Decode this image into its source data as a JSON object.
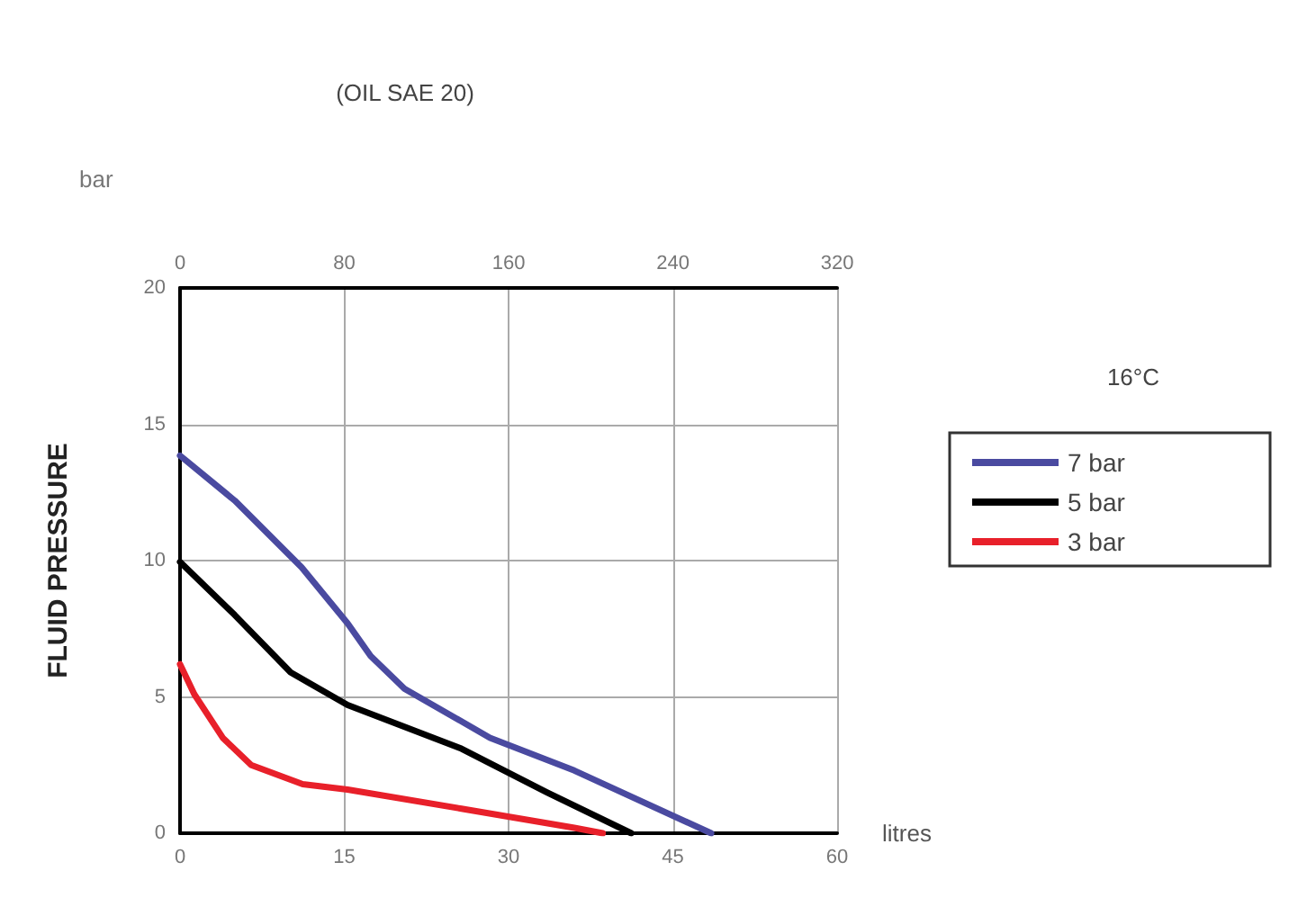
{
  "chart_data": {
    "type": "line",
    "title": "(OIL SAE 20)",
    "ylabel": "FLUID PRESSURE",
    "xlabel": "litres",
    "legend_title": "16°C",
    "annotations": [
      "bar"
    ],
    "xlim": [
      0,
      60
    ],
    "xticks": [
      0,
      15,
      30,
      45,
      60
    ],
    "x2lim": [
      0,
      320
    ],
    "x2ticks": [
      0,
      80,
      160,
      240,
      320
    ],
    "ylim": [
      0,
      20
    ],
    "yticks": [
      0,
      5,
      10,
      15,
      20
    ],
    "grid": true,
    "legend": "right",
    "marker": "none",
    "line_style": "solid",
    "series": [
      {
        "name": "7 bar",
        "color": "#4a4aa0",
        "x": [
          0,
          5,
          11.1,
          15.3,
          17.4,
          20.5,
          28.3,
          36,
          48.5
        ],
        "values": [
          13.85,
          12.2,
          9.75,
          7.7,
          6.5,
          5.3,
          3.5,
          2.3,
          0
        ]
      },
      {
        "name": "5 bar",
        "color": "#000000",
        "x": [
          0,
          5,
          10.1,
          15.3,
          25.7,
          33.5,
          41.2
        ],
        "values": [
          9.95,
          8,
          5.9,
          4.7,
          3.1,
          1.5,
          0
        ]
      },
      {
        "name": "3 bar",
        "color": "#e8202a",
        "x": [
          0,
          1.3,
          3.9,
          6.5,
          11.2,
          15.3,
          25.7,
          36,
          38.6
        ],
        "values": [
          6.2,
          5.1,
          3.5,
          2.5,
          1.8,
          1.6,
          0.9,
          0.2,
          0
        ]
      }
    ]
  }
}
